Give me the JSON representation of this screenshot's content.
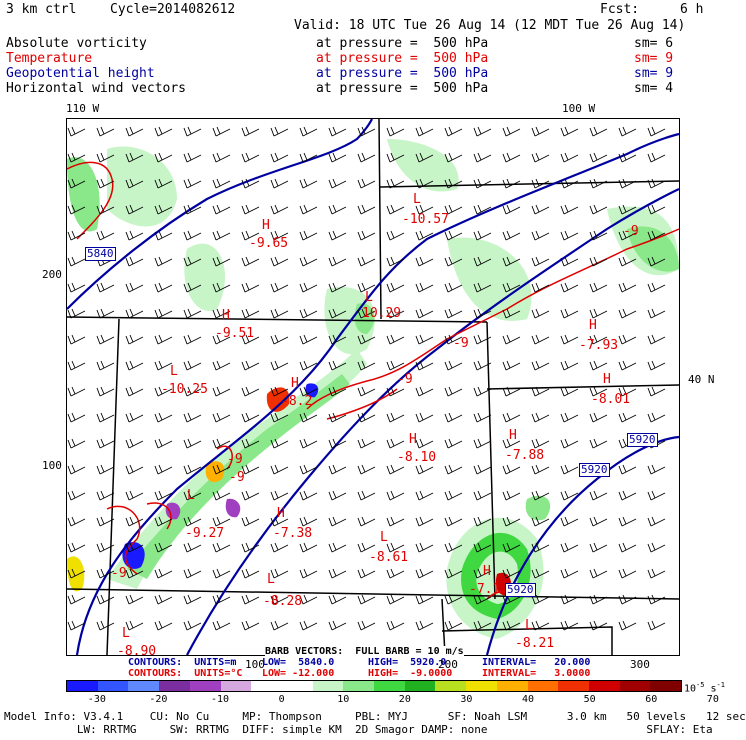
{
  "header": {
    "run": "3 km ctrl",
    "cycle": "Cycle=2014082612",
    "fcst_label": "Fcst:",
    "fcst_value": "6 h",
    "valid": "Valid: 18 UTC Tue 26 Aug 14 (12 MDT Tue 26 Aug 14)"
  },
  "fields": [
    {
      "name": "Absolute vorticity",
      "level": "at pressure =  500 hPa",
      "sm": "sm= 6",
      "color": "#000000"
    },
    {
      "name": "Temperature",
      "level": "at pressure =  500 hPa",
      "sm": "sm= 9",
      "color": "#e00000"
    },
    {
      "name": "Geopotential height",
      "level": "at pressure =  500 hPa",
      "sm": "sm= 9",
      "color": "#0000a0"
    },
    {
      "name": "Horizontal wind vectors",
      "level": "at pressure =  500 hPa",
      "sm": "sm= 4",
      "color": "#000000"
    }
  ],
  "axes": {
    "lon_left": "110 W",
    "lon_right": "100 W",
    "lat_right": "40 N",
    "y_200": "200",
    "y_100": "100",
    "x_100": "100",
    "x_200": "200",
    "x_300": "300"
  },
  "map_labels": {
    "height_labels": [
      "5840",
      "5920",
      "5920",
      "5920"
    ],
    "highs_lows": [
      {
        "type": "H",
        "value": "-9.65"
      },
      {
        "type": "L",
        "value": "-10.57"
      },
      {
        "type": "L",
        "value": "10.29"
      },
      {
        "type": "H",
        "value": "-9.51"
      },
      {
        "type": "L",
        "value": "-10.25"
      },
      {
        "type": "H",
        "value": "-7.93"
      },
      {
        "type": "H",
        "value": "-8.01"
      },
      {
        "type": "H",
        "value": "-8.10"
      },
      {
        "type": "H",
        "value": "-7.88"
      },
      {
        "type": "H",
        "value": "-7.38"
      },
      {
        "type": "L",
        "value": "-8.61"
      },
      {
        "type": "L",
        "value": "-9.27"
      },
      {
        "type": "L",
        "value": "-8.28"
      },
      {
        "type": "L",
        "value": "-8.90"
      },
      {
        "type": "L",
        "value": "-8.21"
      },
      {
        "type": "H",
        "value": "-7.1"
      },
      {
        "type": "H",
        "value": "-8.2"
      }
    ],
    "temp_contour_labels": [
      "-9",
      "-9",
      "-9",
      "-9",
      "-9",
      "-9"
    ],
    "barb_note": "BARB VECTORS:  FULL BARB = 10 m/s"
  },
  "contours": {
    "line1_label": "CONTOURS:  UNITS=m",
    "line1_low": "LOW=  5840.0",
    "line1_high": "HIGH=  5920.0",
    "line1_int": "INTERVAL=   20.000",
    "line2_label": "CONTOURS:  UNITS=°C",
    "line2_low": "LOW= -12.000",
    "line2_high": "HIGH=  -9.0000",
    "line2_int": "INTERVAL=   3.0000"
  },
  "colorbar": {
    "colors": [
      "#1a1aff",
      "#3355ff",
      "#6088ff",
      "#7a2ea0",
      "#a040c0",
      "#d6a8e0",
      "#ffffff",
      "#ffffff",
      "#c8f5c8",
      "#8ae88a",
      "#40d840",
      "#20b020",
      "#b8e020",
      "#f0e000",
      "#ffb000",
      "#ff7000",
      "#f03000",
      "#d00000",
      "#a00000",
      "#800000"
    ],
    "ticks": [
      "-30",
      "-20",
      "-10",
      "0",
      "10",
      "20",
      "30",
      "40",
      "50",
      "60",
      "70"
    ],
    "unit": "10",
    "unit_exp": "-5",
    "unit_tail": "s",
    "unit_tail_exp": "-1"
  },
  "model_info": {
    "line1": "Model Info: V3.4.1    CU: No Cu     MP: Thompson     PBL: MYJ      SF: Noah LSM      3.0 km   50 levels   12 sec",
    "line2": "           LW: RRTMG     SW: RRTMG  DIFF: simple KM  2D Smagor DAMP: none                        SFLAY: Eta"
  }
}
